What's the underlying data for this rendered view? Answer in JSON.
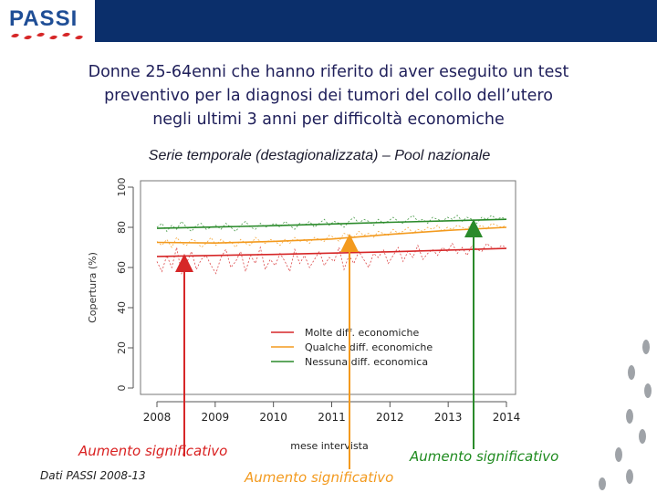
{
  "logo_text": "PASSI",
  "title": "Donne 25-64enni che hanno riferito di aver eseguito un test\npreventivo per la diagnosi dei tumori del collo dell’utero\nnegli ultimi 3 anni per difficoltà economiche",
  "subtitle": "Serie temporale (destagionalizzata) – Pool nazionale",
  "annotations": {
    "red": "Aumento significativo",
    "orange": "Aumento significativo",
    "green": "Aumento significativo"
  },
  "source": "Dati PASSI 2008-13",
  "colors": {
    "header_blue": "#0b2f6b",
    "red": "#d62728",
    "orange": "#f39a1e",
    "green": "#2a8a2a"
  },
  "chart_data": {
    "type": "line",
    "title": "",
    "xlabel": "mese intervista",
    "ylabel": "Copertura (%)",
    "ylim": [
      0,
      100
    ],
    "xlim": [
      2007.9,
      2014.1
    ],
    "x_ticks": [
      2008,
      2009,
      2010,
      2011,
      2012,
      2013,
      2014
    ],
    "y_ticks": [
      0,
      20,
      40,
      60,
      80,
      100
    ],
    "legend_position": "bottom-right",
    "series": [
      {
        "name": "Molte diff. economiche",
        "color": "#d62728",
        "trend": [
          [
            2008.0,
            65.5
          ],
          [
            2010.0,
            66.5
          ],
          [
            2012.0,
            67.8
          ],
          [
            2014.0,
            69.5
          ]
        ],
        "monthly": [
          63,
          58,
          66,
          60,
          70,
          57,
          62,
          68,
          59,
          64,
          66,
          61,
          57,
          65,
          69,
          60,
          63,
          68,
          58,
          66,
          62,
          70,
          59,
          64,
          61,
          67,
          63,
          58,
          69,
          62,
          66,
          60,
          64,
          68,
          61,
          65,
          63,
          70,
          59,
          66,
          62,
          68,
          64,
          60,
          67,
          65,
          69,
          62,
          66,
          70,
          63,
          68,
          65,
          71,
          64,
          67,
          69,
          66,
          70,
          68,
          72,
          67,
          70,
          66,
          71,
          69,
          68,
          72,
          70,
          69,
          71,
          70
        ]
      },
      {
        "name": "Qualche diff. economiche",
        "color": "#f39a1e",
        "trend": [
          [
            2008.0,
            72.5
          ],
          [
            2009.0,
            72.2
          ],
          [
            2010.0,
            73.0
          ],
          [
            2011.0,
            74.2
          ],
          [
            2012.0,
            76.5
          ],
          [
            2013.0,
            78.5
          ],
          [
            2014.0,
            80.0
          ]
        ],
        "monthly": [
          73,
          71,
          74,
          70,
          75,
          72,
          71,
          74,
          73,
          70,
          72,
          75,
          71,
          74,
          72,
          73,
          70,
          74,
          72,
          71,
          75,
          73,
          72,
          74,
          73,
          71,
          74,
          72,
          75,
          73,
          74,
          72,
          75,
          74,
          73,
          76,
          75,
          73,
          77,
          76,
          75,
          78,
          76,
          77,
          75,
          78,
          77,
          76,
          79,
          77,
          78,
          80,
          77,
          79,
          78,
          80,
          79,
          81,
          78,
          80,
          79,
          81,
          80,
          79,
          82,
          80,
          81,
          79,
          82,
          81,
          80,
          81
        ]
      },
      {
        "name": "Nessuna diff. economica",
        "color": "#2a8a2a",
        "trend": [
          [
            2008.0,
            79.5
          ],
          [
            2010.0,
            80.8
          ],
          [
            2012.0,
            82.5
          ],
          [
            2014.0,
            84.0
          ]
        ],
        "monthly": [
          80,
          82,
          78,
          81,
          79,
          83,
          80,
          78,
          81,
          82,
          79,
          80,
          81,
          79,
          82,
          80,
          78,
          81,
          83,
          80,
          79,
          82,
          80,
          81,
          82,
          80,
          83,
          81,
          79,
          82,
          81,
          83,
          80,
          82,
          84,
          81,
          83,
          82,
          80,
          83,
          85,
          82,
          84,
          83,
          81,
          84,
          82,
          83,
          85,
          83,
          82,
          84,
          86,
          83,
          84,
          82,
          85,
          84,
          83,
          85,
          84,
          86,
          83,
          85,
          84,
          82,
          85,
          84,
          86,
          84,
          85,
          84
        ]
      }
    ]
  }
}
